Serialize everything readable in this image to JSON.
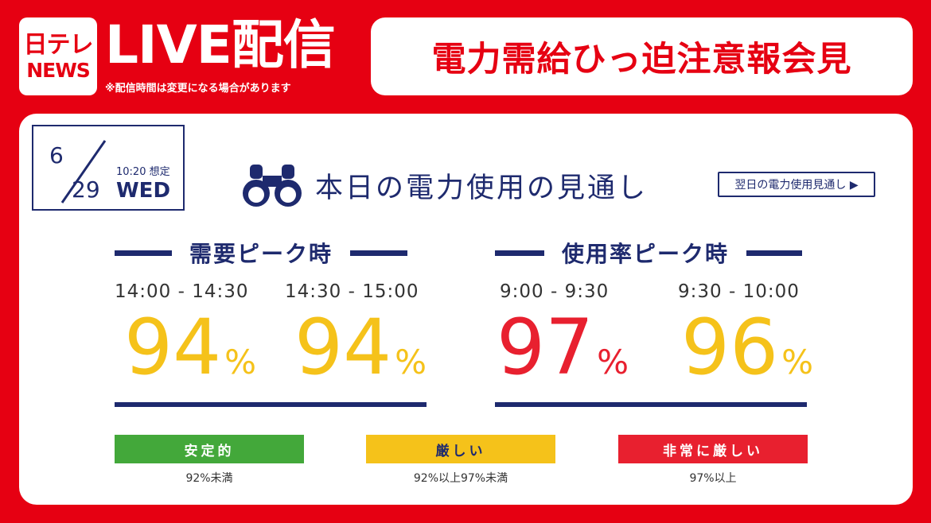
{
  "brand": {
    "line1": "日テレ",
    "line2": "NEWS"
  },
  "live_label": "LIVE配信",
  "live_note": "※配信時間は変更になる場合があります",
  "title": "電力需給ひっ迫注意報会見",
  "date": {
    "month": "6",
    "day": "29",
    "time": "10:20 想定",
    "weekday": "WED"
  },
  "heading": "本日の電力使用の見通し",
  "next_day_button": "翌日の電力使用見通し ▶",
  "sections": [
    {
      "label": "需要ピーク時",
      "slots": [
        {
          "time": "14:00 - 14:30",
          "value": "94",
          "unit": "%"
        },
        {
          "time": "14:30 - 15:00",
          "value": "94",
          "unit": "%"
        }
      ]
    },
    {
      "label": "使用率ピーク時",
      "slots": [
        {
          "time": "9:00 - 9:30",
          "value": "97",
          "unit": "%"
        },
        {
          "time": "9:30 - 10:00",
          "value": "96",
          "unit": "%"
        }
      ]
    }
  ],
  "legend": [
    {
      "label": "安定的",
      "caption": "92%未満",
      "color": "#43a83a"
    },
    {
      "label": "厳しい",
      "caption": "92%以上97%未満",
      "color": "#f5c21a"
    },
    {
      "label": "非常に厳しい",
      "caption": "97%以上",
      "color": "#e8202f"
    }
  ],
  "colors": {
    "brand_red": "#e60012",
    "navy": "#1e2a6e"
  }
}
